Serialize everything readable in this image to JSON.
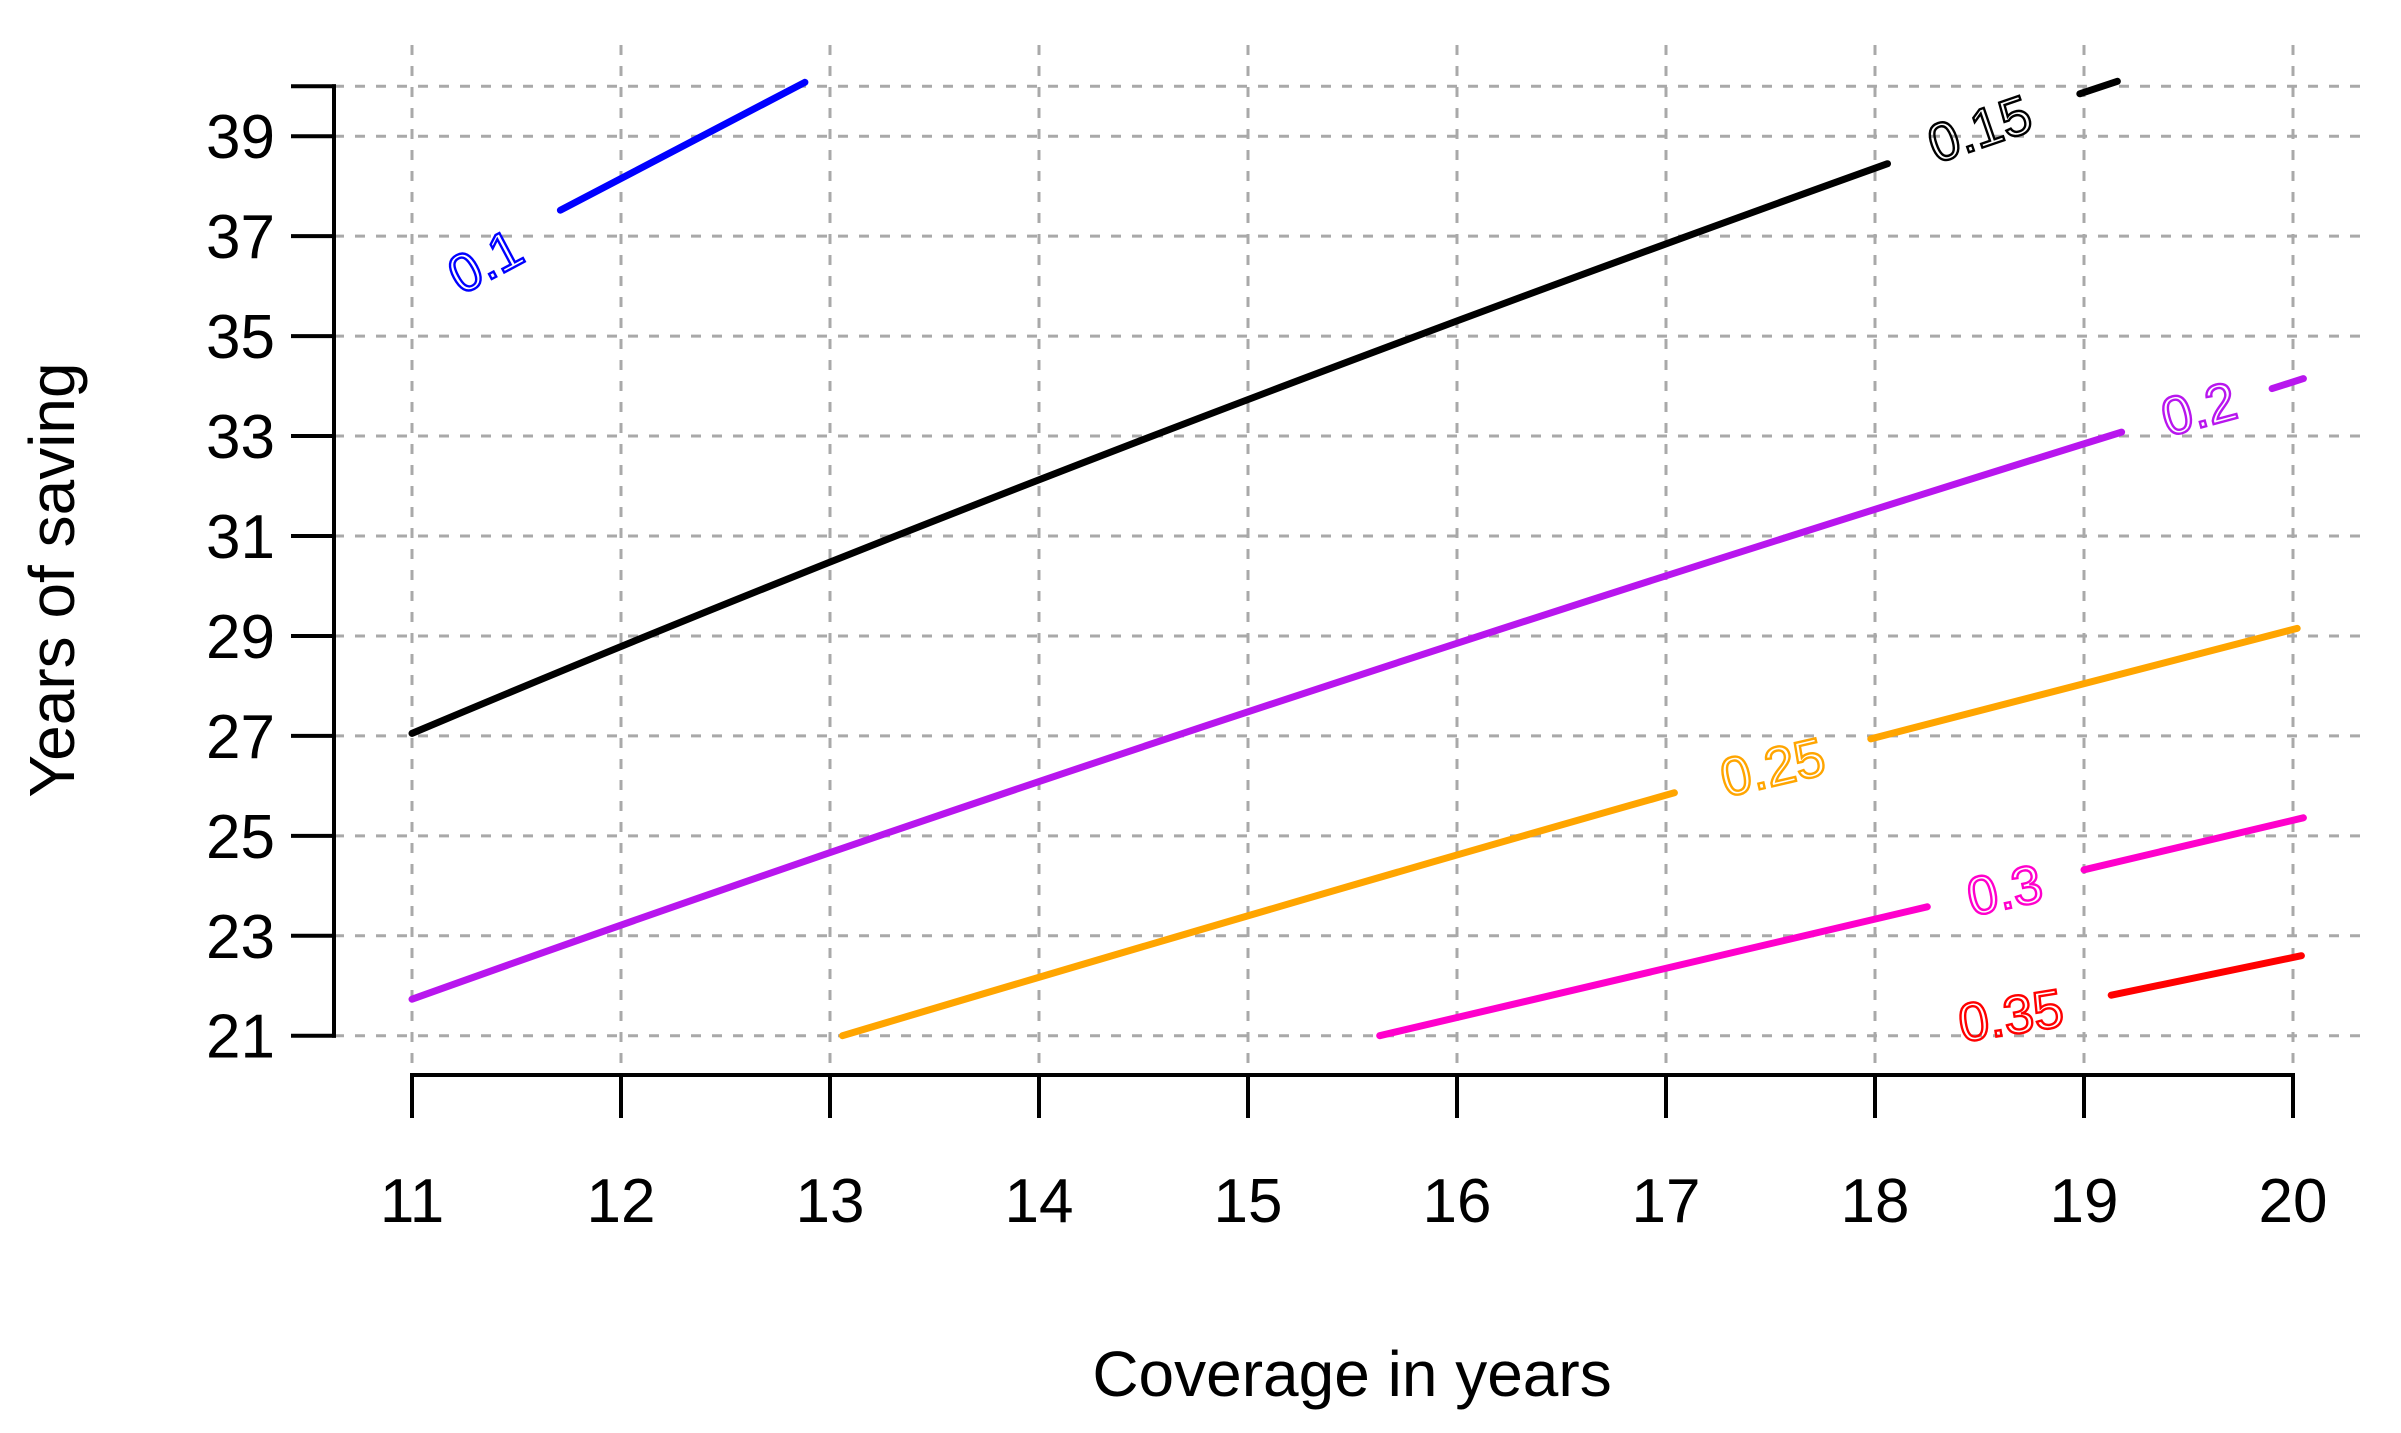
{
  "chart_data": {
    "type": "line",
    "subtype": "contour-plot",
    "title": "",
    "xlabel": "Coverage in years",
    "ylabel": "Years of saving",
    "xlim": [
      10.63,
      20.36
    ],
    "ylim": [
      20.18,
      40.83
    ],
    "grid": true,
    "grid_color": "#a9a9a9",
    "axis_color": "#000000",
    "background_color": "#ffffff",
    "x_ticks": [
      11,
      12,
      13,
      14,
      15,
      16,
      17,
      18,
      19,
      20
    ],
    "x_tick_labels": [
      "11",
      "12",
      "13",
      "14",
      "15",
      "16",
      "17",
      "18",
      "19",
      "20"
    ],
    "y_ticks": [
      21,
      23,
      25,
      27,
      29,
      31,
      33,
      35,
      37,
      39
    ],
    "y_tick_labels": [
      "21",
      "23",
      "25",
      "27",
      "29",
      "31",
      "33",
      "35",
      "37",
      "39"
    ],
    "top_edge_grid_y": 40,
    "contours": [
      {
        "level": 0.1,
        "label": "0.1",
        "color": "#0000ff",
        "label_x": 11.35,
        "label_y": 36.5,
        "label_angle": -28,
        "segments": [
          [
            [
              11.71,
              37.52
            ],
            [
              12.88,
              40.08
            ]
          ]
        ]
      },
      {
        "level": 0.15,
        "label": "0.15",
        "color": "#000000",
        "label_x": 18.5,
        "label_y": 39.15,
        "label_angle": -19,
        "segments": [
          [
            [
              11.0,
              27.05
            ],
            [
              14.04,
              32.42
            ],
            [
              18.06,
              38.45
            ]
          ],
          [
            [
              18.98,
              39.85
            ],
            [
              19.16,
              40.1
            ]
          ]
        ]
      },
      {
        "level": 0.2,
        "label": "0.2",
        "color": "#b816ee",
        "label_x": 19.55,
        "label_y": 33.55,
        "label_angle": -15,
        "segments": [
          [
            [
              11.0,
              21.73
            ],
            [
              14.58,
              27.1
            ],
            [
              19.18,
              33.08
            ]
          ],
          [
            [
              19.9,
              33.95
            ],
            [
              20.05,
              34.15
            ]
          ]
        ]
      },
      {
        "level": 0.25,
        "label": "0.25",
        "color": "#ffa500",
        "label_x": 17.51,
        "label_y": 26.38,
        "label_angle": -13,
        "segments": [
          [
            [
              13.06,
              21.0
            ],
            [
              15.4,
              23.92
            ],
            [
              17.04,
              25.86
            ]
          ],
          [
            [
              17.98,
              26.94
            ],
            [
              20.02,
              29.15
            ]
          ]
        ]
      },
      {
        "level": 0.3,
        "label": "0.3",
        "color": "#ff00cc",
        "label_x": 18.62,
        "label_y": 23.92,
        "label_angle": -12,
        "segments": [
          [
            [
              15.63,
              21.0
            ],
            [
              18.25,
              23.58
            ]
          ],
          [
            [
              19.0,
              24.32
            ],
            [
              20.05,
              25.36
            ]
          ]
        ]
      },
      {
        "level": 0.35,
        "label": "0.35",
        "color": "#ff0000",
        "label_x": 18.65,
        "label_y": 21.41,
        "label_angle": -9,
        "segments": [
          [
            [
              19.13,
              21.81
            ],
            [
              20.04,
              22.6
            ]
          ]
        ]
      }
    ]
  }
}
